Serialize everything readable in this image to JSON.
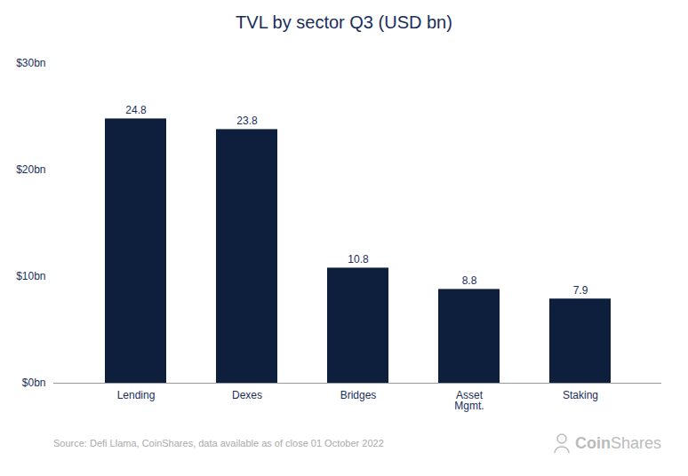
{
  "chart_data": {
    "type": "bar",
    "title": "TVL by sector Q3 (USD bn)",
    "categories": [
      "Lending",
      "Dexes",
      "Bridges",
      "Asset\nMgmt.",
      "Staking"
    ],
    "values": [
      24.8,
      23.8,
      10.8,
      8.8,
      7.9
    ],
    "color": "#0d1f3c",
    "ylim": [
      0,
      30
    ],
    "yticks": [
      {
        "value": 0,
        "label": "$0bn"
      },
      {
        "value": 10,
        "label": "$10bn"
      },
      {
        "value": 20,
        "label": "$20bn"
      },
      {
        "value": 30,
        "label": "$30bn"
      }
    ],
    "data_labels": true,
    "grid": false,
    "annotations": [
      "Source: Defi Llama, CoinShares, data available as of close 01 October 2022",
      "Coin",
      "Shares"
    ]
  }
}
